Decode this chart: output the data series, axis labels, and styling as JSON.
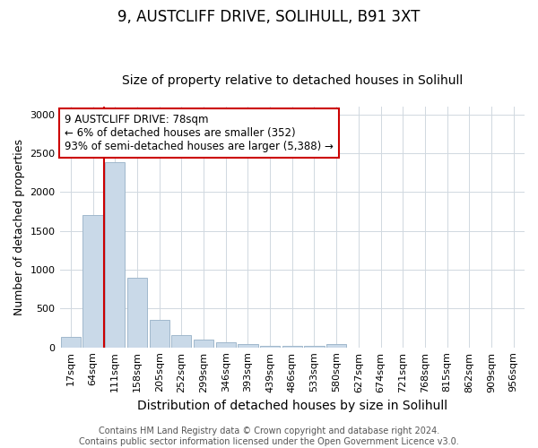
{
  "title": "9, AUSTCLIFF DRIVE, SOLIHULL, B91 3XT",
  "subtitle": "Size of property relative to detached houses in Solihull",
  "xlabel": "Distribution of detached houses by size in Solihull",
  "ylabel": "Number of detached properties",
  "bin_labels": [
    "17sqm",
    "64sqm",
    "111sqm",
    "158sqm",
    "205sqm",
    "252sqm",
    "299sqm",
    "346sqm",
    "393sqm",
    "439sqm",
    "486sqm",
    "533sqm",
    "580sqm",
    "627sqm",
    "674sqm",
    "721sqm",
    "768sqm",
    "815sqm",
    "862sqm",
    "909sqm",
    "956sqm"
  ],
  "bar_values": [
    140,
    1700,
    2380,
    900,
    350,
    160,
    95,
    60,
    45,
    25,
    20,
    15,
    40,
    0,
    0,
    0,
    0,
    0,
    0,
    0,
    0
  ],
  "bar_color": "#c9d9e8",
  "bar_edge_color": "#a0b8cc",
  "vline_x": 1.5,
  "vline_color": "#cc0000",
  "annotation_text": "9 AUSTCLIFF DRIVE: 78sqm\n← 6% of detached houses are smaller (352)\n93% of semi-detached houses are larger (5,388) →",
  "annotation_box_color": "#ffffff",
  "annotation_box_edge": "#cc0000",
  "ylim": [
    0,
    3100
  ],
  "footer": "Contains HM Land Registry data © Crown copyright and database right 2024.\nContains public sector information licensed under the Open Government Licence v3.0.",
  "title_fontsize": 12,
  "subtitle_fontsize": 10,
  "xlabel_fontsize": 10,
  "ylabel_fontsize": 9,
  "tick_fontsize": 8,
  "annotation_fontsize": 8.5,
  "footer_fontsize": 7,
  "background_color": "#ffffff",
  "grid_color": "#d0d8e0"
}
